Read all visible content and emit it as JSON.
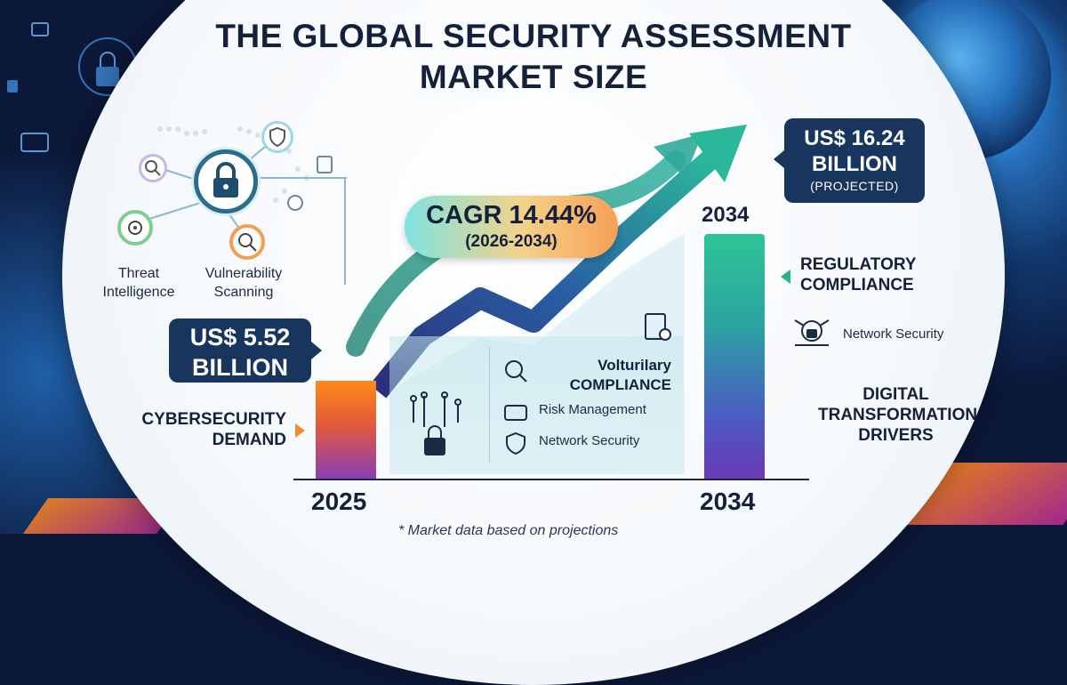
{
  "title": {
    "line1": "THE GLOBAL SECURITY ASSESSMENT",
    "line2": "MARKET SIZE"
  },
  "left_labels": {
    "threat": [
      "Threat",
      "Intelligence"
    ],
    "vulnerability": [
      "Vulnerability",
      "Scanning"
    ]
  },
  "value_2025": {
    "line1": "US$ 5.52",
    "line2": "BILLION"
  },
  "value_2034": {
    "value": "US$ 16.24",
    "unit": "BILLION",
    "note": "(PROJECTED)"
  },
  "cagr": {
    "rate": "CAGR 14.44%",
    "period": "(2026-2034)"
  },
  "years": {
    "start": "2025",
    "end": "2034",
    "end_top": "2034"
  },
  "drivers": {
    "cybersecurity": [
      "CYBERSECURITY",
      "DEMAND"
    ],
    "regulatory": [
      "REGULATORY",
      "COMPLIANCE"
    ],
    "network_right": "Network Security",
    "digital": [
      "DIGITAL",
      "TRANSFORMATION",
      "DRIVERS"
    ]
  },
  "panel": {
    "voluntary": [
      "Volturilary",
      "COMPLIANCE"
    ],
    "risk": "Risk Management",
    "network": "Network Security"
  },
  "footnote": "* Market data based on projections",
  "colors": {
    "navy": "#17355d",
    "orange": "#f08a2a",
    "teal": "#21b48f",
    "purple": "#6a39b6"
  },
  "chart_data": {
    "type": "bar",
    "categories": [
      "2025",
      "2034"
    ],
    "values": [
      5.52,
      16.24
    ]
  }
}
